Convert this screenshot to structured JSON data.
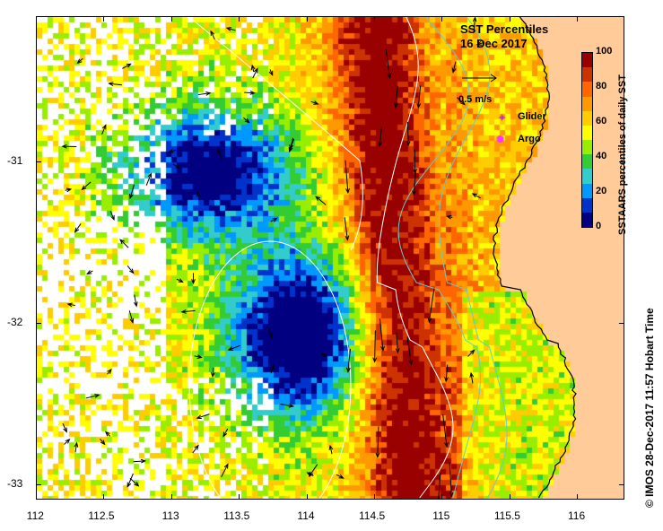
{
  "title": "SST Percentiles",
  "date": "16 Dec 2017",
  "vector_scale_label": "0.5 m/s",
  "legend": [
    {
      "label": "Glider",
      "color": "#cc33cc",
      "icon": "star-icon"
    },
    {
      "label": "Argo",
      "color": "#ff33ff",
      "icon": "ring-icon"
    }
  ],
  "colorbar": {
    "title": "SSTAARS percentiles of daily SST",
    "ticks": [
      "100",
      "80",
      "60",
      "40",
      "20",
      "0"
    ],
    "colors": [
      "#000080",
      "#0033cc",
      "#0099ff",
      "#33cccc",
      "#33cc33",
      "#99ee00",
      "#ffff00",
      "#ffcc00",
      "#ff9900",
      "#ff6600",
      "#cc3300",
      "#990000"
    ]
  },
  "x_ticks": [
    "112",
    "112.5",
    "113",
    "113.5",
    "114",
    "114.5",
    "115",
    "115.5",
    "116"
  ],
  "y_ticks": [
    "-31",
    "-32",
    "-33"
  ],
  "credit": "© IMOS 28-Dec-2017 11:57 Hobart Time",
  "colors": {
    "land": "#ffcc99",
    "coast": "#000000",
    "contour_white": "#ffffff",
    "contour_cyan": "#66cccc",
    "arrow": "#000000"
  }
}
